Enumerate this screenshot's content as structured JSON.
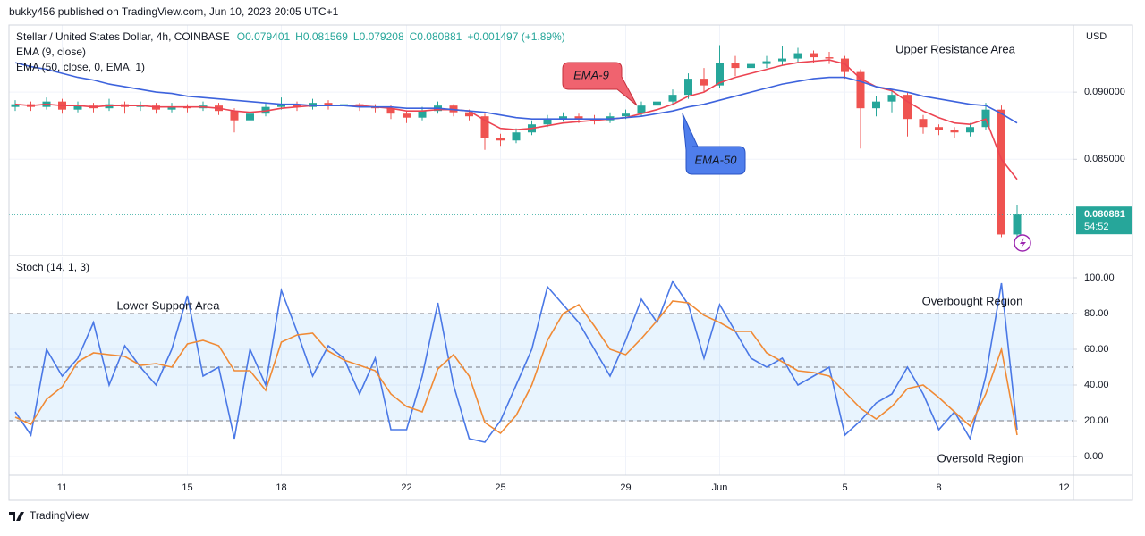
{
  "header": {
    "publish": "bukky456 published on TradingView.com, Jun 10, 2023 20:05 UTC+1"
  },
  "footer": {
    "brand": "TradingView"
  },
  "chart_data": [
    {
      "type": "candlestick",
      "title": "Stellar / United States Dollar, 4h, COINBASE",
      "info": [
        "O0.079401",
        "H0.081569",
        "L0.079208",
        "C0.080881",
        "+0.001497 (+1.89%)"
      ],
      "axis_label": "USD",
      "last_price": {
        "value": 0.080881,
        "label": "0.080881",
        "countdown": "54:52"
      },
      "up_color": "#26a69a",
      "down_color": "#ef5350",
      "open": [
        0.0889,
        0.0891,
        0.0889,
        0.0893,
        0.0887,
        0.089,
        0.0888,
        0.0891,
        0.0889,
        0.089,
        0.0887,
        0.0889,
        0.0888,
        0.089,
        0.0886,
        0.0879,
        0.0884,
        0.0889,
        0.0891,
        0.0889,
        0.0892,
        0.089,
        0.0891,
        0.0889,
        0.0888,
        0.0884,
        0.0881,
        0.0886,
        0.089,
        0.0885,
        0.0882,
        0.0866,
        0.0864,
        0.087,
        0.0876,
        0.088,
        0.0882,
        0.088,
        0.0879,
        0.0882,
        0.0884,
        0.089,
        0.0893,
        0.0898,
        0.091,
        0.0905,
        0.0922,
        0.0918,
        0.0921,
        0.0923,
        0.0925,
        0.0929,
        0.0926,
        0.0925,
        0.0915,
        0.0888,
        0.0893,
        0.0898,
        0.088,
        0.0874,
        0.0872,
        0.087,
        0.0874,
        0.0887,
        0.079401
      ],
      "high": [
        0.0894,
        0.0893,
        0.0896,
        0.0895,
        0.0893,
        0.0892,
        0.0895,
        0.0893,
        0.0893,
        0.0892,
        0.0892,
        0.0891,
        0.0893,
        0.0892,
        0.0888,
        0.0887,
        0.0892,
        0.0896,
        0.0893,
        0.0895,
        0.0894,
        0.0893,
        0.0892,
        0.0891,
        0.089,
        0.0886,
        0.0889,
        0.0893,
        0.0891,
        0.0887,
        0.0884,
        0.0869,
        0.0873,
        0.0879,
        0.0883,
        0.0885,
        0.0884,
        0.0883,
        0.0885,
        0.0887,
        0.0893,
        0.0896,
        0.0902,
        0.0914,
        0.0918,
        0.0935,
        0.0927,
        0.0925,
        0.0927,
        0.0934,
        0.0933,
        0.0931,
        0.093,
        0.0927,
        0.0917,
        0.0897,
        0.0902,
        0.09,
        0.0883,
        0.0876,
        0.0874,
        0.0877,
        0.0892,
        0.089,
        0.081569
      ],
      "low": [
        0.0886,
        0.0886,
        0.0887,
        0.0884,
        0.0885,
        0.0885,
        0.0886,
        0.0884,
        0.0886,
        0.0884,
        0.0885,
        0.0885,
        0.0886,
        0.0883,
        0.087,
        0.0877,
        0.0882,
        0.0887,
        0.0886,
        0.0887,
        0.0887,
        0.0888,
        0.0886,
        0.0885,
        0.088,
        0.0877,
        0.0879,
        0.0884,
        0.0882,
        0.0879,
        0.0857,
        0.086,
        0.0862,
        0.0868,
        0.0874,
        0.0878,
        0.0877,
        0.0876,
        0.0877,
        0.088,
        0.0882,
        0.0887,
        0.089,
        0.0895,
        0.09,
        0.0903,
        0.0912,
        0.0913,
        0.0918,
        0.092,
        0.0922,
        0.0922,
        0.0921,
        0.091,
        0.0858,
        0.0882,
        0.0885,
        0.0867,
        0.0869,
        0.0868,
        0.0866,
        0.0867,
        0.0872,
        0.0792,
        0.079208
      ],
      "close": [
        0.0891,
        0.0889,
        0.0893,
        0.0887,
        0.089,
        0.0888,
        0.0891,
        0.0889,
        0.089,
        0.0887,
        0.0889,
        0.0888,
        0.089,
        0.0886,
        0.0879,
        0.0884,
        0.0889,
        0.0891,
        0.0889,
        0.0892,
        0.089,
        0.0891,
        0.0889,
        0.0888,
        0.0884,
        0.0881,
        0.0886,
        0.089,
        0.0885,
        0.0882,
        0.0866,
        0.0864,
        0.087,
        0.0876,
        0.088,
        0.0882,
        0.088,
        0.0879,
        0.0882,
        0.0884,
        0.089,
        0.0893,
        0.0898,
        0.091,
        0.0905,
        0.0922,
        0.0918,
        0.0921,
        0.0923,
        0.0925,
        0.0929,
        0.0926,
        0.0925,
        0.0915,
        0.0888,
        0.0893,
        0.0898,
        0.088,
        0.0874,
        0.0872,
        0.087,
        0.0874,
        0.0887,
        0.0794,
        0.080881
      ],
      "series": [
        {
          "name": "EMA (9, close)",
          "color": "#ec4452",
          "values": [
            0.0891,
            0.089,
            0.0891,
            0.089,
            0.089,
            0.0889,
            0.089,
            0.089,
            0.089,
            0.0889,
            0.0889,
            0.0889,
            0.0889,
            0.0888,
            0.0886,
            0.0885,
            0.0886,
            0.0888,
            0.0889,
            0.089,
            0.089,
            0.089,
            0.089,
            0.0889,
            0.0888,
            0.0886,
            0.0886,
            0.0887,
            0.0887,
            0.0886,
            0.0879,
            0.0873,
            0.0872,
            0.0873,
            0.0875,
            0.0877,
            0.0878,
            0.0879,
            0.088,
            0.0881,
            0.0884,
            0.0887,
            0.0891,
            0.0897,
            0.09,
            0.0907,
            0.0911,
            0.0914,
            0.0917,
            0.092,
            0.0922,
            0.0923,
            0.0924,
            0.0921,
            0.091,
            0.0904,
            0.0901,
            0.0893,
            0.0886,
            0.0881,
            0.0877,
            0.0876,
            0.088,
            0.085,
            0.0835
          ]
        },
        {
          "name": "EMA (50, close, 0, EMA, 1)",
          "color": "#3d63dd",
          "values": [
            0.0922,
            0.0919,
            0.0917,
            0.0914,
            0.0911,
            0.0909,
            0.0906,
            0.0904,
            0.0902,
            0.09,
            0.0899,
            0.0897,
            0.0896,
            0.0895,
            0.0894,
            0.0893,
            0.0892,
            0.0891,
            0.0891,
            0.089,
            0.089,
            0.089,
            0.0889,
            0.0889,
            0.0889,
            0.0888,
            0.0888,
            0.0888,
            0.0887,
            0.0886,
            0.0885,
            0.0883,
            0.0881,
            0.088,
            0.088,
            0.088,
            0.088,
            0.088,
            0.088,
            0.0881,
            0.0882,
            0.0884,
            0.0886,
            0.0889,
            0.0891,
            0.0894,
            0.0897,
            0.09,
            0.0903,
            0.0906,
            0.0908,
            0.091,
            0.0911,
            0.0911,
            0.0908,
            0.0904,
            0.0902,
            0.09,
            0.0897,
            0.0895,
            0.0893,
            0.0891,
            0.089,
            0.0884,
            0.0877
          ]
        }
      ],
      "annotations": [
        "EMA-9",
        "EMA-50",
        "Upper Resistance Area"
      ],
      "xlim": [
        -0.4,
        67.6
      ],
      "xticks": [
        {
          "value": 3,
          "label": "11"
        },
        {
          "value": 11,
          "label": "15"
        },
        {
          "value": 17,
          "label": "18"
        },
        {
          "value": 25,
          "label": "22"
        },
        {
          "value": 31,
          "label": "25"
        },
        {
          "value": 39,
          "label": "29"
        },
        {
          "value": 45,
          "label": "Jun"
        },
        {
          "value": 53,
          "label": "5"
        },
        {
          "value": 59,
          "label": "8"
        },
        {
          "value": 67,
          "label": "12"
        }
      ],
      "ylim": [
        0.0779,
        0.095
      ],
      "yticks": [
        {
          "value": 0.085,
          "label": "0.085000"
        },
        {
          "value": 0.09,
          "label": "0.090000"
        }
      ],
      "grid": true
    },
    {
      "type": "line",
      "title": "Stoch (14, 1, 3)",
      "series": [
        {
          "name": "%K",
          "color": "#4a78e6",
          "values": [
            25,
            12,
            60,
            45,
            55,
            75,
            40,
            62,
            50,
            40,
            60,
            90,
            45,
            50,
            10,
            60,
            40,
            93,
            70,
            45,
            62,
            55,
            35,
            55,
            15,
            15,
            45,
            86,
            40,
            10,
            8,
            20,
            40,
            60,
            95,
            85,
            75,
            60,
            45,
            65,
            88,
            75,
            98,
            85,
            55,
            85,
            70,
            55,
            50,
            55,
            40,
            45,
            50,
            12,
            20,
            30,
            35,
            50,
            35,
            15,
            25,
            10,
            45,
            97,
            15
          ]
        },
        {
          "name": "%D",
          "color": "#f08a35",
          "values": [
            22,
            18,
            32,
            39,
            53,
            58,
            57,
            56,
            51,
            52,
            50,
            63,
            65,
            62,
            48,
            48,
            37,
            64,
            68,
            69,
            59,
            54,
            51,
            48,
            35,
            28,
            25,
            49,
            57,
            45,
            19,
            13,
            23,
            40,
            65,
            80,
            85,
            73,
            60,
            57,
            66,
            76,
            87,
            86,
            79,
            75,
            70,
            70,
            58,
            53,
            48,
            47,
            45,
            36,
            27,
            21,
            28,
            38,
            40,
            33,
            25,
            17,
            35,
            60,
            12
          ]
        }
      ],
      "levels": [
        80,
        50,
        20
      ],
      "annotations": [
        "Lower Support Area",
        "Overbought Region",
        "Oversold Region"
      ],
      "ylim": [
        -10.5,
        111.5
      ],
      "yticks": [
        {
          "value": 0,
          "label": "0.00"
        },
        {
          "value": 20,
          "label": "20.00"
        },
        {
          "value": 40,
          "label": "40.00"
        },
        {
          "value": 60,
          "label": "60.00"
        },
        {
          "value": 80,
          "label": "80.00"
        },
        {
          "value": 100,
          "label": "100.00"
        }
      ],
      "grid": true
    }
  ]
}
